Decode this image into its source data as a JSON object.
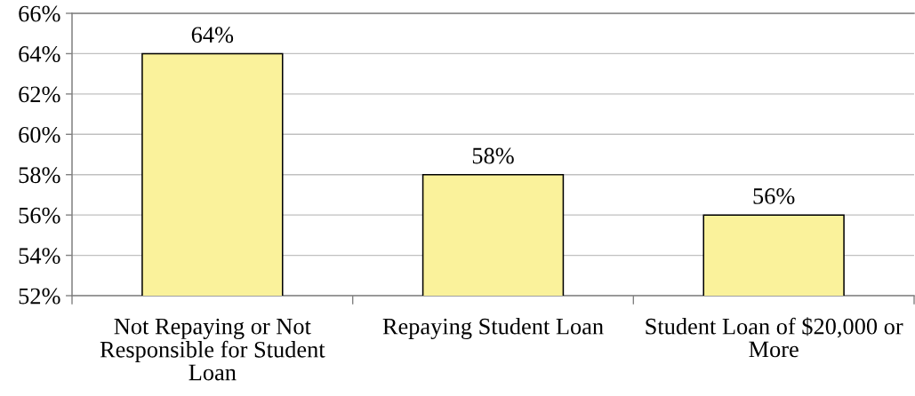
{
  "chart_data": {
    "type": "bar",
    "categories": [
      "Not Repaying or Not Responsible for Student Loan",
      "Repaying Student Loan",
      "Student Loan of $20,000 or More"
    ],
    "values": [
      64,
      58,
      56
    ],
    "color": "#faf29b",
    "value_labels": [
      "64%",
      "58%",
      "56%"
    ],
    "ylim": [
      52,
      66
    ],
    "yticks": [
      {
        "value": 52,
        "label": "52%"
      },
      {
        "value": 54,
        "label": "54%"
      },
      {
        "value": 56,
        "label": "56%"
      },
      {
        "value": 58,
        "label": "58%"
      },
      {
        "value": 60,
        "label": "60%"
      },
      {
        "value": 62,
        "label": "62%"
      },
      {
        "value": 64,
        "label": "64%"
      },
      {
        "value": 66,
        "label": "66%"
      }
    ],
    "grid": "y"
  }
}
